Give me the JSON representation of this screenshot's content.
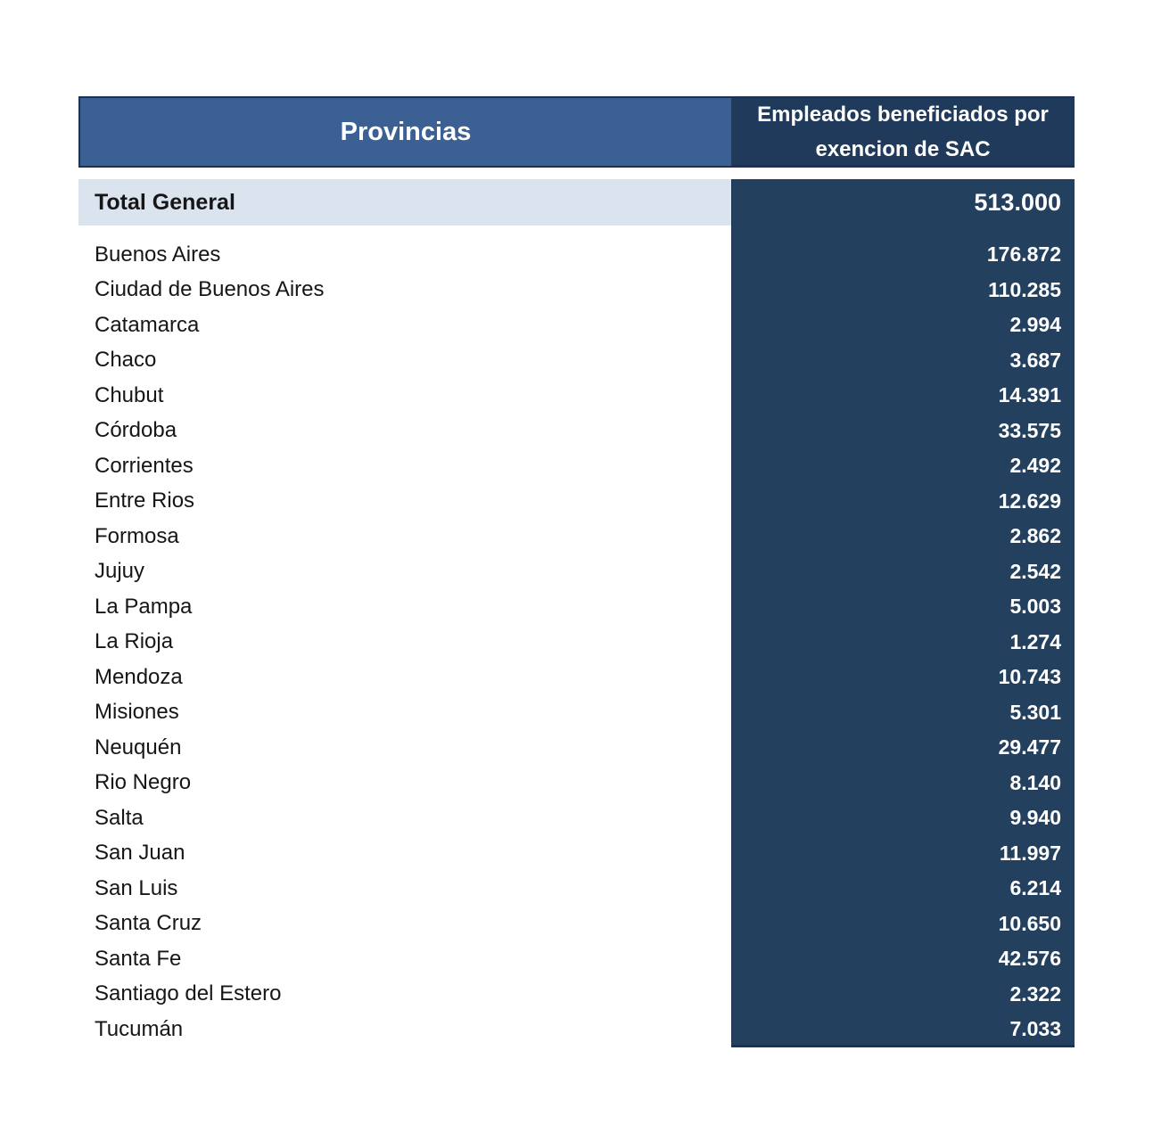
{
  "chart_data": {
    "type": "table",
    "columns": [
      "Provincias",
      "Empleados beneficiados por exencion de SAC"
    ],
    "total_row": [
      "Total General",
      "513.000"
    ],
    "rows": [
      [
        "Buenos Aires",
        "176.872"
      ],
      [
        "Ciudad de Buenos Aires",
        "110.285"
      ],
      [
        "Catamarca",
        "2.994"
      ],
      [
        "Chaco",
        "3.687"
      ],
      [
        "Chubut",
        "14.391"
      ],
      [
        "Córdoba",
        "33.575"
      ],
      [
        "Corrientes",
        "2.492"
      ],
      [
        "Entre Rios",
        "12.629"
      ],
      [
        "Formosa",
        "2.862"
      ],
      [
        "Jujuy",
        "2.542"
      ],
      [
        "La Pampa",
        "5.003"
      ],
      [
        "La Rioja",
        "1.274"
      ],
      [
        "Mendoza",
        "10.743"
      ],
      [
        "Misiones",
        "5.301"
      ],
      [
        "Neuquén",
        "29.477"
      ],
      [
        "Rio Negro",
        "8.140"
      ],
      [
        "Salta",
        "9.940"
      ],
      [
        "San Juan",
        "11.997"
      ],
      [
        "San Luis",
        "6.214"
      ],
      [
        "Santa Cruz",
        "10.650"
      ],
      [
        "Santa Fe",
        "42.576"
      ],
      [
        "Santiago del Estero",
        "2.322"
      ],
      [
        "Tucumán",
        "7.033"
      ]
    ]
  },
  "colors": {
    "header_left_bg": "#3a6094",
    "header_right_bg": "#203a5c",
    "data_column_bg": "#24405f",
    "total_row_bg": "#dbe3ef",
    "border_dark": "#1c3253",
    "header_text": "#ffffff",
    "value_text": "#ffffff",
    "province_text": "#161616"
  }
}
